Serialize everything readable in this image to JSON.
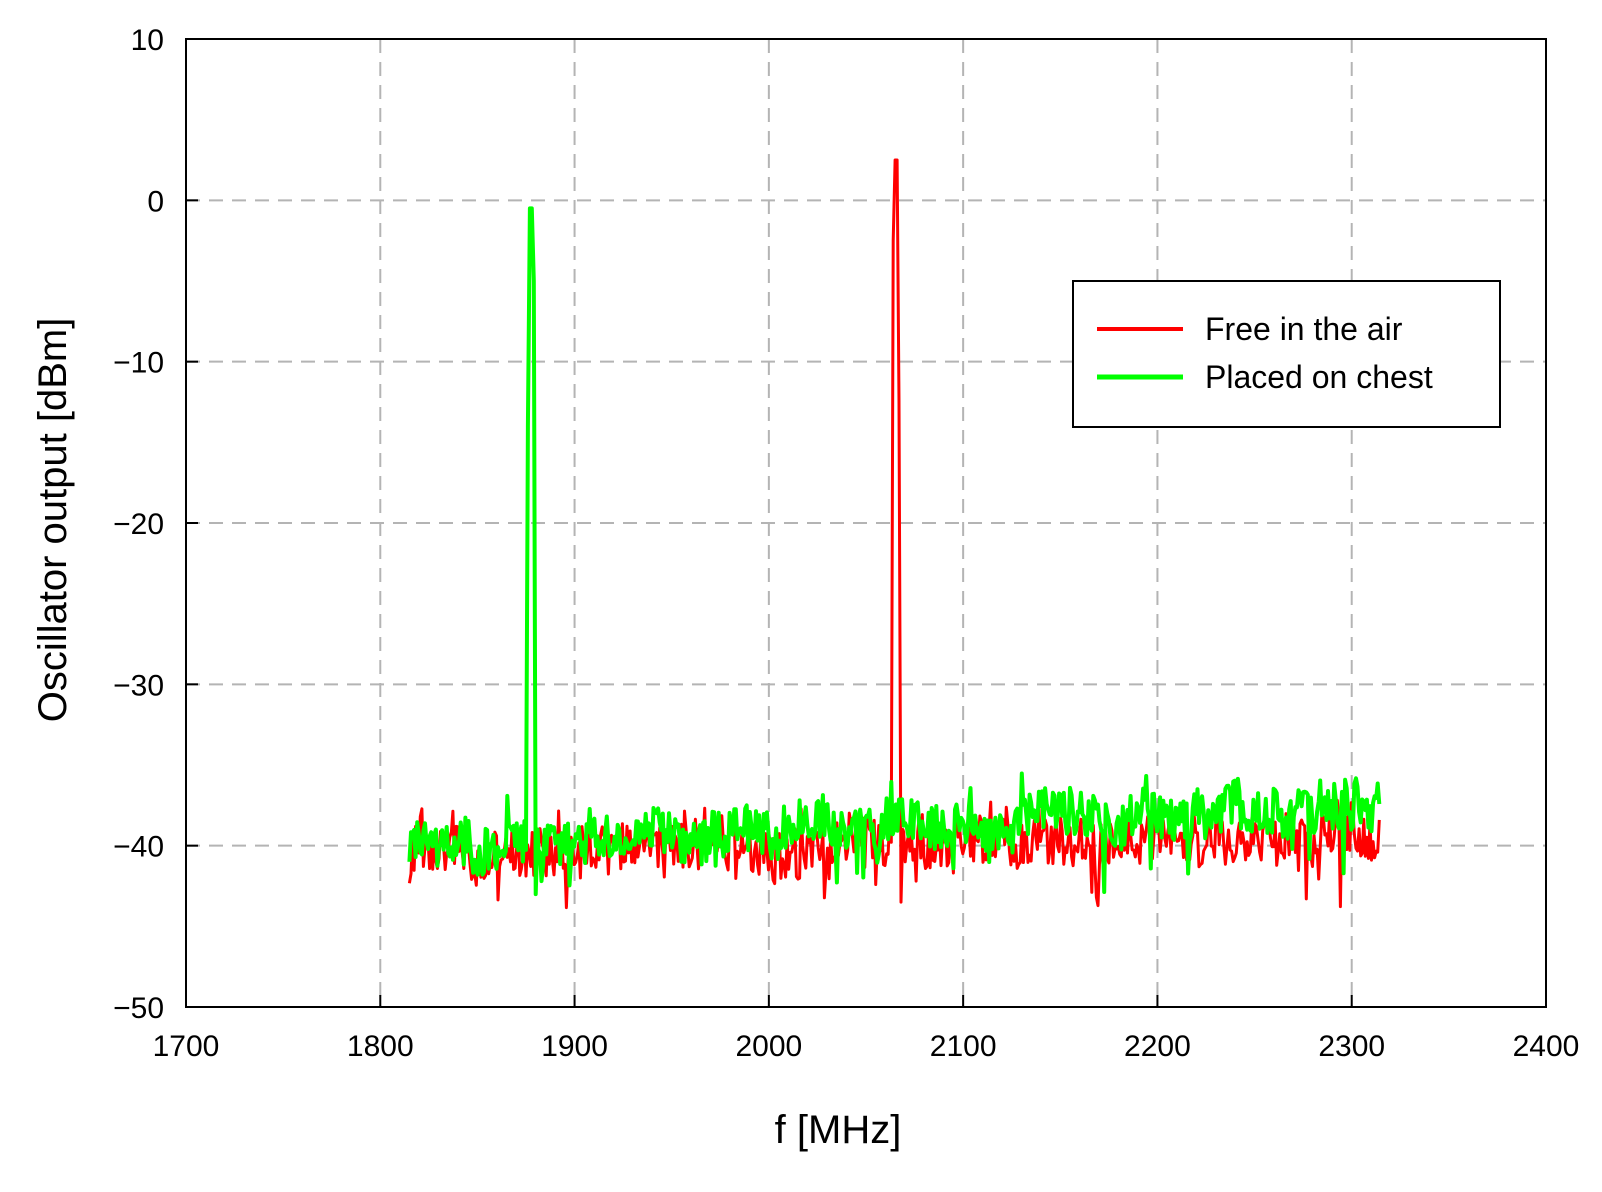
{
  "chart_data": {
    "type": "line",
    "title": "",
    "xlabel": "f [MHz]",
    "ylabel": "Oscillator output [dBm]",
    "xlim": [
      1700,
      2400
    ],
    "ylim": [
      -50,
      10
    ],
    "xticks": [
      1700,
      1800,
      1900,
      2000,
      2100,
      2200,
      2300,
      2400
    ],
    "yticks": [
      10,
      0,
      -10,
      -20,
      -30,
      -40,
      -50
    ],
    "xtick_labels": [
      "1700",
      "1800",
      "1900",
      "2000",
      "2100",
      "2200",
      "2300",
      "2400"
    ],
    "ytick_labels": [
      "10",
      "0",
      "−10",
      "−20",
      "−30",
      "−40",
      "−50"
    ],
    "grid": true,
    "legend_position": "upper-right",
    "series": [
      {
        "name": "Free in the air",
        "color": "#ff0000",
        "x_range": [
          1815,
          2315
        ],
        "noise_floor": {
          "start_dBm": -40.5,
          "end_dBm": -39.5,
          "amplitude_dB": 1.6,
          "dip_min_dBm": -44
        },
        "peak": {
          "x": [
            2063,
            2064,
            2065,
            2066,
            2067,
            2068,
            2069
          ],
          "y": [
            -39,
            -2.5,
            2.5,
            2.5,
            -12.5,
            -43.5,
            -39
          ]
        }
      },
      {
        "name": "Placed on chest",
        "color": "#00ff00",
        "x_range": [
          1815,
          2315
        ],
        "noise_floor": {
          "start_dBm": -40,
          "end_dBm": -37.5,
          "amplitude_dB": 1.5,
          "dip_min_dBm": -43
        },
        "peak": {
          "x": [
            1875,
            1876,
            1877,
            1878,
            1879,
            1880,
            1881
          ],
          "y": [
            -40,
            -14,
            -0.5,
            -0.5,
            -5,
            -43,
            -39
          ]
        }
      }
    ]
  }
}
